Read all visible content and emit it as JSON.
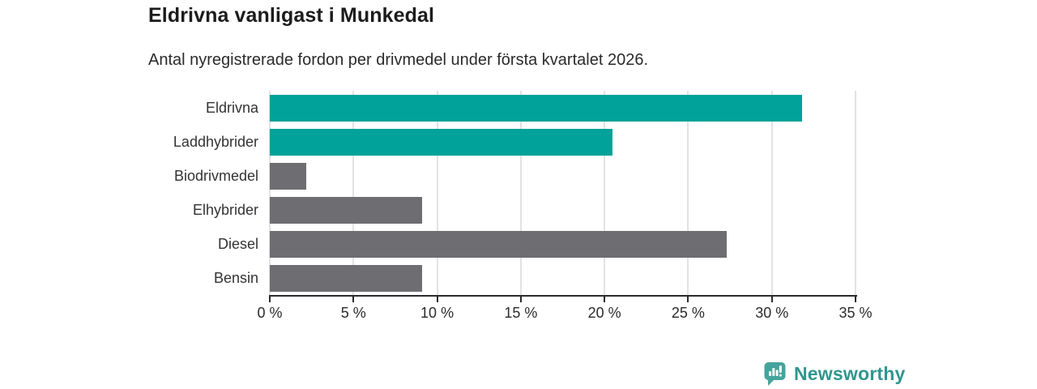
{
  "title": "Eldrivna vanligast i Munkedal",
  "subtitle": "Antal nyregistrerade fordon per drivmedel under första kvartalet 2026.",
  "chart_data": {
    "type": "bar",
    "orientation": "horizontal",
    "title": "Eldrivna vanligast i Munkedal",
    "subtitle": "Antal nyregistrerade fordon per drivmedel under första kvartalet 2026.",
    "categories": [
      "Eldrivna",
      "Laddhybrider",
      "Biodrivmedel",
      "Elhybrider",
      "Diesel",
      "Bensin"
    ],
    "values": [
      31.8,
      20.5,
      2.2,
      9.1,
      27.3,
      9.1
    ],
    "unit": "%",
    "xlim": [
      0,
      35
    ],
    "x_ticks": [
      0,
      5,
      10,
      15,
      20,
      25,
      30,
      35
    ],
    "x_tick_labels": [
      "0 %",
      "5 %",
      "10 %",
      "15 %",
      "20 %",
      "25 %",
      "30 %",
      "35 %"
    ],
    "bar_colors": [
      "#00a299",
      "#00a299",
      "#6d6d72",
      "#6d6d72",
      "#6d6d72",
      "#6d6d72"
    ],
    "grid": true,
    "legend": false
  },
  "colors": {
    "accent_teal": "#00a299",
    "neutral_gray": "#6d6d72",
    "axis": "#2b2b2b",
    "gridline": "#e2e2e2",
    "brand": "#2f968e"
  },
  "branding": {
    "name": "Newsworthy",
    "icon": "newsworthy-logo-icon"
  }
}
